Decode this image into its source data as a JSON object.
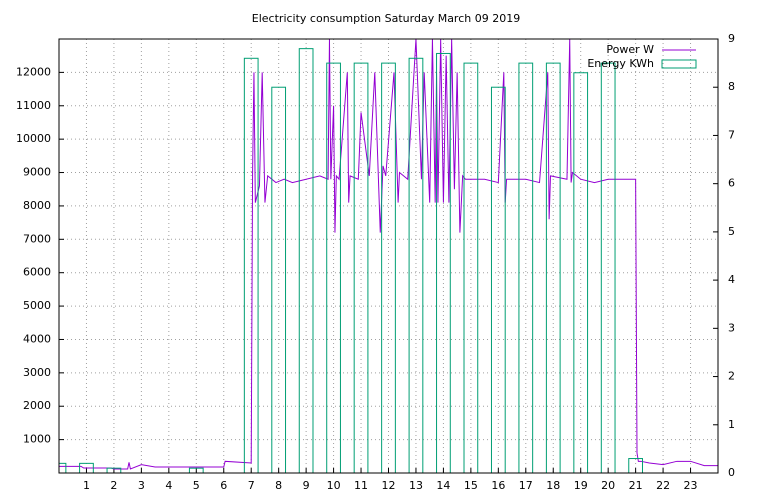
{
  "chart_data": {
    "type": "line",
    "title": "Electricity consumption Saturday March 09 2019",
    "xlim": [
      0,
      24
    ],
    "xticks": [
      1,
      2,
      3,
      4,
      5,
      6,
      7,
      8,
      9,
      10,
      11,
      12,
      13,
      14,
      15,
      16,
      17,
      18,
      19,
      20,
      21,
      22,
      23
    ],
    "ylim": [
      0,
      13000
    ],
    "yticks": [
      1000,
      2000,
      3000,
      4000,
      5000,
      6000,
      7000,
      8000,
      9000,
      10000,
      11000,
      12000
    ],
    "y2lim": [
      0,
      9
    ],
    "y2ticks": [
      0,
      1,
      2,
      3,
      4,
      5,
      6,
      7,
      8,
      9
    ],
    "grid": true,
    "legend": "top-right",
    "series": [
      {
        "name": "Power W",
        "color": "#9400d3",
        "type": "line",
        "x": [
          0,
          0.8,
          0.9,
          1.9,
          2.0,
          2.5,
          2.55,
          2.6,
          3.0,
          3.5,
          5.0,
          5.5,
          6.0,
          6.05,
          7.0,
          7.05,
          7.1,
          7.15,
          7.3,
          7.4,
          7.5,
          7.6,
          7.9,
          8.2,
          8.5,
          9.0,
          9.5,
          9.8,
          9.85,
          9.9,
          10.0,
          10.05,
          10.1,
          10.2,
          10.5,
          10.55,
          10.6,
          10.9,
          11.0,
          11.3,
          11.5,
          11.7,
          11.8,
          11.9,
          12.2,
          12.35,
          12.4,
          12.7,
          13.0,
          13.2,
          13.3,
          13.5,
          13.6,
          13.7,
          13.75,
          13.8,
          13.9,
          14.0,
          14.1,
          14.2,
          14.3,
          14.4,
          14.5,
          14.6,
          14.7,
          14.8,
          15.0,
          15.5,
          16.0,
          16.2,
          16.25,
          16.3,
          17.0,
          17.5,
          17.8,
          17.85,
          17.9,
          18.5,
          18.6,
          18.65,
          18.7,
          19.0,
          19.5,
          20.0,
          20.5,
          21.0,
          21.05,
          21.1,
          21.2,
          21.5,
          22.0,
          22.5,
          23.0,
          23.5,
          24
        ],
        "values": [
          200,
          200,
          150,
          150,
          120,
          120,
          320,
          120,
          250,
          180,
          180,
          180,
          180,
          350,
          300,
          9000,
          12000,
          8100,
          8600,
          12000,
          8100,
          8900,
          8700,
          8800,
          8700,
          8800,
          8900,
          8800,
          13000,
          8800,
          11000,
          7200,
          8900,
          8800,
          12000,
          8100,
          8900,
          8800,
          10800,
          8900,
          12000,
          7200,
          9200,
          8900,
          12000,
          8100,
          9000,
          8800,
          13000,
          8800,
          12000,
          8100,
          13000,
          8100,
          12000,
          8100,
          13000,
          8100,
          12500,
          8100,
          13000,
          8500,
          12000,
          7200,
          8900,
          8800,
          8800,
          8800,
          8700,
          12000,
          8100,
          8800,
          8800,
          8700,
          12000,
          7600,
          8900,
          8800,
          13000,
          8700,
          9000,
          8800,
          8700,
          8800,
          8800,
          8800,
          600,
          350,
          350,
          300,
          250,
          350,
          350,
          220,
          220
        ]
      },
      {
        "name": "Energy KWh",
        "color": "#009e73",
        "type": "bar",
        "axis": "y2",
        "x": [
          0,
          1,
          2,
          3,
          4,
          5,
          6,
          7,
          8,
          9,
          10,
          11,
          12,
          13,
          14,
          15,
          16,
          17,
          18,
          19,
          20,
          21,
          22,
          23
        ],
        "values": [
          0.2,
          0.2,
          0.1,
          0,
          0,
          0.1,
          0,
          8.6,
          8.0,
          8.8,
          8.5,
          8.5,
          8.5,
          8.6,
          8.7,
          8.5,
          8.0,
          8.5,
          8.5,
          8.3,
          8.5,
          0.3,
          0,
          0
        ]
      }
    ]
  }
}
